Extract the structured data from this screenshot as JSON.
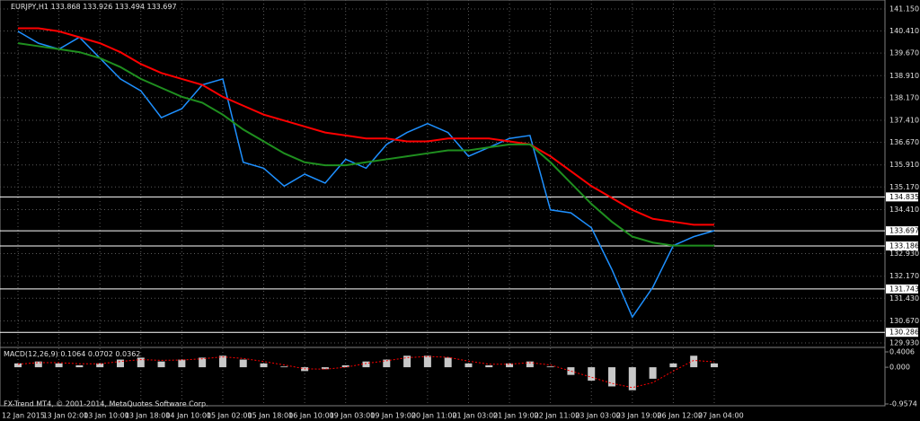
{
  "header": {
    "symbol": "EURJPY,H1",
    "ohlc": [
      133.868,
      133.926,
      133.494,
      133.697
    ]
  },
  "footer": "FX-Trend MT4, © 2001-2014, MetaQuotes Software Corp.",
  "chart_data": [
    {
      "type": "line",
      "categories": [
        "12 Jan 2015",
        null,
        "13 Jan 02:00",
        null,
        "13 Jan 10:00",
        null,
        "13 Jan 18:00",
        null,
        "14 Jan 10:00",
        null,
        "15 Jan 02:00",
        null,
        "15 Jan 18:00",
        null,
        "16 Jan 10:00",
        null,
        "19 Jan 03:00",
        null,
        "19 Jan 19:00",
        null,
        "20 Jan 11:00",
        null,
        "21 Jan 03:00",
        null,
        "21 Jan 19:00",
        null,
        "22 Jan 11:00",
        null,
        "23 Jan 03:00",
        null,
        "23 Jan 19:00",
        null,
        "26 Jan 12:00",
        null,
        "27 Jan 04:00"
      ],
      "series": [
        {
          "color": "#1e90ff",
          "values": [
            140.4,
            140.0,
            139.8,
            140.2,
            139.5,
            138.8,
            138.4,
            137.5,
            137.8,
            138.6,
            138.8,
            136.0,
            135.8,
            135.2,
            135.6,
            135.3,
            136.1,
            135.8,
            136.6,
            137.0,
            137.3,
            137.0,
            136.2,
            136.5,
            136.8,
            136.9,
            134.4,
            134.3,
            133.8,
            132.4,
            130.8,
            131.8,
            133.2,
            133.5,
            133.7
          ]
        },
        {
          "color": "#ff0000",
          "values": [
            140.5,
            140.5,
            140.4,
            140.2,
            140.0,
            139.7,
            139.3,
            139.0,
            138.8,
            138.6,
            138.2,
            137.9,
            137.6,
            137.4,
            137.2,
            137.0,
            136.9,
            136.8,
            136.8,
            136.7,
            136.7,
            136.8,
            136.8,
            136.8,
            136.7,
            136.6,
            136.2,
            135.7,
            135.2,
            134.8,
            134.4,
            134.1,
            134.0,
            133.9,
            133.9
          ]
        },
        {
          "color": "#1f8f1f",
          "values": [
            140.0,
            139.9,
            139.8,
            139.7,
            139.5,
            139.2,
            138.8,
            138.5,
            138.2,
            138.0,
            137.6,
            137.1,
            136.7,
            136.3,
            136.0,
            135.9,
            135.9,
            136.0,
            136.1,
            136.2,
            136.3,
            136.4,
            136.4,
            136.5,
            136.6,
            136.6,
            136.0,
            135.3,
            134.6,
            134.0,
            133.5,
            133.3,
            133.2,
            133.2,
            133.2
          ]
        }
      ],
      "ylim": [
        129.93,
        141.15
      ],
      "yticks": [
        {
          "value": 141.15,
          "label": "141.150"
        },
        {
          "value": 140.41,
          "label": "140.410"
        },
        {
          "value": 139.67,
          "label": "139.670"
        },
        {
          "value": 138.91,
          "label": "138.910"
        },
        {
          "value": 138.17,
          "label": "138.170"
        },
        {
          "value": 137.41,
          "label": "137.410"
        },
        {
          "value": 136.67,
          "label": "136.670"
        },
        {
          "value": 135.91,
          "label": "135.910"
        },
        {
          "value": 135.17,
          "label": "135.170"
        },
        {
          "value": 134.41,
          "label": "134.410"
        },
        {
          "value": 132.93,
          "label": "132.930"
        },
        {
          "value": 132.17,
          "label": "132.170"
        },
        {
          "value": 131.43,
          "label": "131.430"
        },
        {
          "value": 130.67,
          "label": "130.670"
        },
        {
          "value": 129.93,
          "label": "129.930"
        }
      ],
      "levels": [
        134.835,
        133.697,
        133.186,
        131.743,
        130.286
      ],
      "grid": true
    },
    {
      "type": "macd",
      "title": "MACD(12,26,9)",
      "readout": [
        0.1064,
        0.0702,
        0.0362
      ],
      "histogram": {
        "color": "#c8c8c8",
        "values": [
          0.1,
          0.15,
          0.1,
          0.05,
          0.1,
          0.2,
          0.25,
          0.15,
          0.2,
          0.25,
          0.3,
          0.2,
          0.1,
          0.02,
          -0.1,
          -0.05,
          0.05,
          0.15,
          0.2,
          0.3,
          0.3,
          0.25,
          0.1,
          0.05,
          0.1,
          0.15,
          0.02,
          -0.2,
          -0.35,
          -0.5,
          -0.6,
          -0.3,
          0.1,
          0.3,
          0.1
        ]
      },
      "signal": {
        "color": "#ff0000",
        "values": [
          0.08,
          0.12,
          0.12,
          0.09,
          0.09,
          0.15,
          0.2,
          0.18,
          0.19,
          0.22,
          0.27,
          0.23,
          0.15,
          0.06,
          -0.04,
          -0.05,
          0.0,
          0.1,
          0.17,
          0.25,
          0.28,
          0.26,
          0.16,
          0.08,
          0.08,
          0.12,
          0.06,
          -0.1,
          -0.26,
          -0.42,
          -0.53,
          -0.4,
          -0.1,
          0.18,
          0.14
        ]
      },
      "ylim": [
        -0.9574,
        0.4006
      ],
      "yticks": [
        0.4006,
        {
          "value": 0,
          "label": "0.000"
        },
        -0.9574
      ]
    }
  ]
}
